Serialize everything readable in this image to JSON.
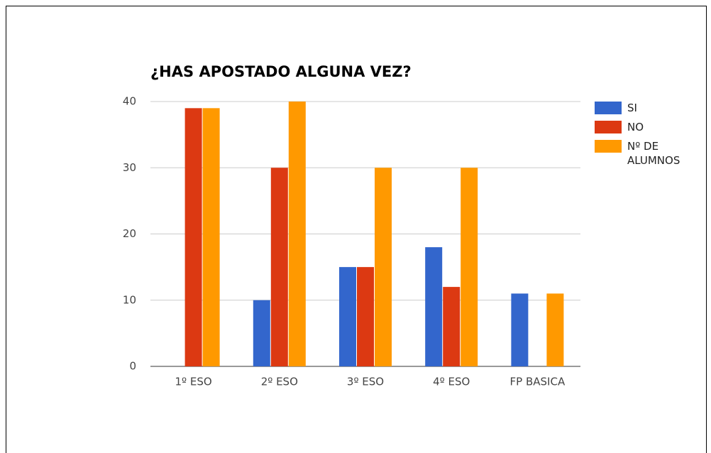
{
  "chart_data": {
    "type": "bar",
    "title": "¿HAS APOSTADO ALGUNA VEZ?",
    "categories": [
      "1º ESO",
      "2º ESO",
      "3º ESO",
      "4º ESO",
      "FP BASICA"
    ],
    "series": [
      {
        "name": "SI",
        "color": "#3366cc",
        "values": [
          0,
          10,
          15,
          18,
          11
        ]
      },
      {
        "name": "NO",
        "color": "#dc3912",
        "values": [
          39,
          30,
          15,
          12,
          0
        ]
      },
      {
        "name": "Nº DE ALUMNOS",
        "color": "#ff9900",
        "values": [
          39,
          40,
          30,
          30,
          11
        ]
      }
    ],
    "ylim": [
      0,
      40
    ],
    "yticks": [
      0,
      10,
      20,
      30,
      40
    ],
    "grid": true,
    "legend": "right"
  }
}
